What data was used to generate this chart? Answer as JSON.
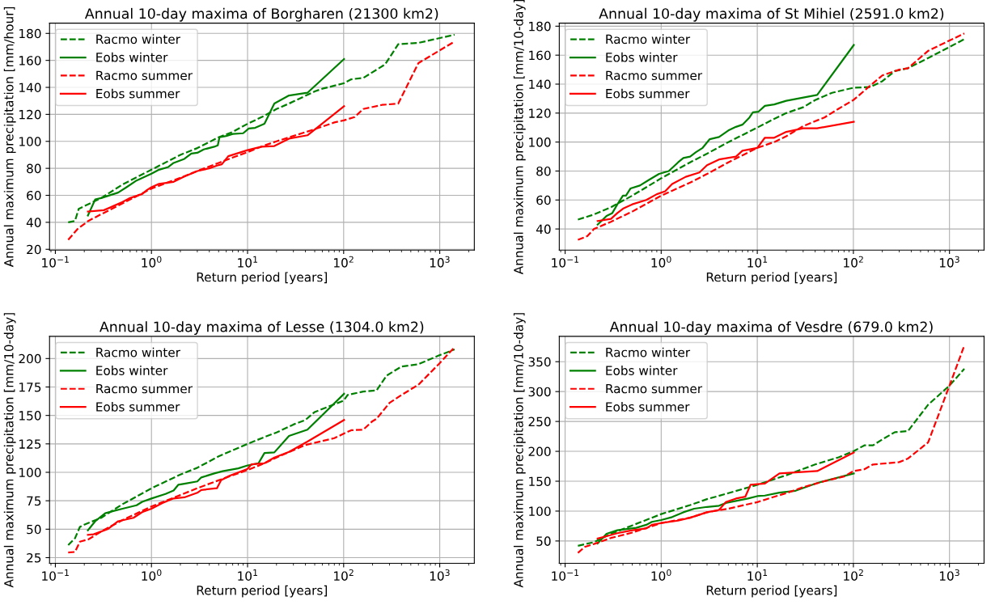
{
  "chart_data": [
    {
      "type": "line",
      "title": "Annual 10-day maxima of Borgharen (21300 km2)",
      "xlabel": "Return period [years]",
      "ylabel": "Annual maximum precipitation [mm/hour]",
      "log": "x",
      "grid": true,
      "legend": "top left",
      "xlim": [
        0.087,
        2290
      ],
      "ylim": [
        19.4,
        187.6
      ],
      "xticks": [
        {
          "value": 0.1,
          "label": "10$^{−1}$"
        },
        {
          "value": 1,
          "label": "10$^{0}$"
        },
        {
          "value": 10,
          "label": "10$^{1}$"
        },
        {
          "value": 100,
          "label": "10$^{2}$"
        },
        {
          "value": 1000,
          "label": "10$^{3}$"
        }
      ],
      "yticks": [
        20,
        40,
        60,
        80,
        100,
        120,
        140,
        160,
        180
      ],
      "series": [
        {
          "name": "Racmo winter",
          "color": "#008000",
          "line_style": "dashed",
          "x": [
            0.136,
            0.16,
            0.175,
            0.2,
            0.3,
            0.5,
            1,
            2,
            3,
            5,
            7,
            10,
            15,
            20,
            27,
            50,
            60,
            100,
            120,
            160,
            270,
            370,
            600,
            1427
          ],
          "values": [
            40,
            41,
            50,
            52,
            58,
            68,
            79,
            90,
            95,
            103,
            107,
            113,
            119,
            124,
            128,
            137,
            139,
            143,
            146,
            147,
            157,
            172,
            173,
            179
          ]
        },
        {
          "name": "Eobs winter",
          "color": "#008000",
          "line_style": "solid",
          "x": [
            0.218,
            0.26,
            0.3,
            0.45,
            0.55,
            0.7,
            1,
            1.2,
            1.5,
            1.7,
            2.2,
            2.6,
            3,
            3.5,
            4.5,
            4.9,
            5.1,
            6,
            7,
            9,
            10.3,
            12,
            15,
            19,
            27,
            42,
            101
          ],
          "values": [
            45,
            57,
            58,
            62,
            66,
            71,
            76,
            79,
            81,
            84,
            87,
            91,
            91.5,
            94,
            96,
            97,
            103,
            104,
            105.5,
            106,
            109.5,
            110,
            113,
            128,
            134,
            136,
            161
          ]
        },
        {
          "name": "Racmo summer",
          "color": "#ff0000",
          "line_style": "dashed",
          "x": [
            0.136,
            0.17,
            0.22,
            0.3,
            0.5,
            1,
            2,
            3,
            5,
            7,
            10,
            15,
            20,
            30,
            50,
            80,
            100,
            130,
            160,
            250,
            370,
            600,
            1427
          ],
          "values": [
            27,
            35,
            41,
            46,
            54,
            65,
            73,
            78,
            84,
            88,
            92,
            97,
            100,
            104,
            109,
            114,
            115.5,
            118,
            124,
            127,
            128,
            158,
            174
          ]
        },
        {
          "name": "Eobs summer",
          "color": "#ff0000",
          "line_style": "solid",
          "x": [
            0.218,
            0.32,
            0.4,
            0.5,
            0.6,
            0.8,
            0.9,
            1,
            1.2,
            1.7,
            2.2,
            3,
            4,
            4.8,
            5.4,
            6.3,
            10,
            14,
            19,
            27,
            42,
            101
          ],
          "values": [
            48,
            49,
            52,
            55,
            58,
            61,
            64,
            66,
            68.5,
            70,
            74,
            78,
            80,
            82,
            83,
            89,
            93.5,
            96,
            96.5,
            102,
            104.5,
            126
          ]
        }
      ]
    },
    {
      "type": "line",
      "title": "Annual 10-day maxima of St Mihiel (2591.0 km2)",
      "xlabel": "Return period [years]",
      "ylabel": "Annual maximum precipitation [mm/10-day]",
      "log": "x",
      "grid": true,
      "legend": "top left",
      "xlim": [
        0.087,
        2290
      ],
      "ylim": [
        25.4,
        182.1
      ],
      "xticks": [
        {
          "value": 0.1,
          "label": "10$^{−1}$"
        },
        {
          "value": 1,
          "label": "10$^{0}$"
        },
        {
          "value": 10,
          "label": "10$^{1}$"
        },
        {
          "value": 100,
          "label": "10$^{2}$"
        },
        {
          "value": 1000,
          "label": "10$^{3}$"
        }
      ],
      "yticks": [
        40,
        60,
        80,
        100,
        120,
        140,
        160,
        180
      ],
      "series": [
        {
          "name": "Racmo winter",
          "color": "#008000",
          "line_style": "dashed",
          "x": [
            0.136,
            0.2,
            0.3,
            0.5,
            1,
            2,
            3,
            5,
            10,
            15,
            20,
            30,
            40,
            60,
            100,
            150,
            200,
            270,
            370,
            600,
            1427
          ],
          "values": [
            46.5,
            50,
            55,
            63,
            75,
            86,
            92,
            100,
            110,
            116,
            120,
            124,
            129,
            134,
            137.5,
            138,
            142,
            149,
            151,
            158,
            171
          ]
        },
        {
          "name": "Eobs winter",
          "color": "#008000",
          "line_style": "solid",
          "x": [
            0.218,
            0.27,
            0.31,
            0.35,
            0.4,
            0.43,
            0.48,
            0.6,
            0.75,
            0.95,
            1.2,
            1.5,
            1.7,
            2,
            2.3,
            2.7,
            3.2,
            4,
            5,
            6,
            7,
            8.3,
            9,
            10.3,
            12,
            15,
            20,
            42,
            101
          ],
          "values": [
            43,
            49,
            51,
            57,
            63,
            63,
            68,
            70,
            74,
            78,
            80,
            86,
            89,
            90,
            93,
            96,
            102,
            103.5,
            108,
            110.5,
            112,
            117,
            120.5,
            121,
            125,
            126,
            128.5,
            132.5,
            167
          ]
        },
        {
          "name": "Racmo summer",
          "color": "#ff0000",
          "line_style": "dashed",
          "x": [
            0.136,
            0.17,
            0.2,
            0.3,
            0.5,
            1,
            2,
            3,
            5,
            10,
            15,
            20,
            30,
            50,
            70,
            100,
            150,
            200,
            300,
            370,
            600,
            1427
          ],
          "values": [
            32.5,
            35,
            40,
            45,
            52,
            63,
            72,
            78,
            86,
            96,
            100,
            104,
            111,
            117,
            123,
            129,
            139,
            146,
            150,
            151,
            163,
            175
          ]
        },
        {
          "name": "Eobs summer",
          "color": "#ff0000",
          "line_style": "solid",
          "x": [
            0.218,
            0.3,
            0.35,
            0.4,
            0.5,
            0.7,
            0.9,
            1.1,
            1.3,
            1.8,
            2.5,
            3,
            4,
            6,
            7,
            10,
            12,
            15,
            20,
            30,
            42,
            101
          ],
          "values": [
            45.5,
            47,
            51,
            54,
            57,
            60,
            64,
            66,
            71,
            76,
            79,
            84,
            88,
            90,
            94,
            96,
            103,
            103,
            107,
            109.5,
            109.5,
            114
          ]
        }
      ]
    },
    {
      "type": "line",
      "title": "Annual 10-day maxima of Lesse (1304.0 km2)",
      "xlabel": "Return period [years]",
      "ylabel": "Annual maximum precipitation [mm/10-day]",
      "log": "x",
      "grid": true,
      "legend": "top left",
      "xlim": [
        0.087,
        2290
      ],
      "ylim": [
        20,
        219.5
      ],
      "xticks": [
        {
          "value": 0.1,
          "label": "10$^{−1}$"
        },
        {
          "value": 1,
          "label": "10$^{0}$"
        },
        {
          "value": 10,
          "label": "10$^{1}$"
        },
        {
          "value": 100,
          "label": "10$^{2}$"
        },
        {
          "value": 1000,
          "label": "10$^{3}$"
        }
      ],
      "yticks": [
        25,
        50,
        75,
        100,
        125,
        150,
        175,
        200
      ],
      "series": [
        {
          "name": "Racmo winter",
          "color": "#008000",
          "line_style": "dashed",
          "x": [
            0.136,
            0.16,
            0.18,
            0.2,
            0.3,
            0.5,
            1,
            2,
            3,
            5,
            10,
            15,
            20,
            30,
            40,
            50,
            100,
            110,
            160,
            220,
            280,
            400,
            600,
            1000,
            1427
          ],
          "values": [
            36,
            42,
            52,
            54,
            60,
            72,
            86,
            98,
            104,
            114,
            125,
            131,
            135,
            142,
            146,
            153,
            163,
            168,
            171,
            172,
            185,
            193,
            195,
            203,
            208
          ]
        },
        {
          "name": "Eobs winter",
          "color": "#008000",
          "line_style": "solid",
          "x": [
            0.218,
            0.26,
            0.33,
            0.4,
            0.5,
            0.7,
            0.8,
            1,
            1.4,
            1.7,
            1.9,
            2.2,
            3,
            3.3,
            4.5,
            5.5,
            8,
            10,
            13,
            15,
            19,
            27,
            42,
            101
          ],
          "values": [
            49,
            57,
            64,
            66,
            68,
            71,
            74,
            77,
            81,
            84,
            89,
            90,
            92,
            95.5,
            99,
            101,
            103.5,
            106,
            108,
            117,
            117.5,
            132,
            137.5,
            169
          ]
        },
        {
          "name": "Racmo summer",
          "color": "#ff0000",
          "line_style": "dashed",
          "x": [
            0.136,
            0.16,
            0.18,
            0.22,
            0.3,
            0.5,
            1,
            2,
            3,
            5,
            10,
            15,
            20,
            40,
            80,
            100,
            120,
            160,
            200,
            220,
            300,
            400,
            600,
            1000,
            1427
          ],
          "values": [
            29.5,
            30,
            39,
            41,
            48,
            58,
            70,
            80,
            86,
            93,
            102,
            108,
            113,
            124,
            130,
            134,
            137,
            137.5,
            145,
            147,
            161,
            168,
            177,
            196,
            210
          ]
        },
        {
          "name": "Eobs summer",
          "color": "#ff0000",
          "line_style": "solid",
          "x": [
            0.218,
            0.25,
            0.35,
            0.45,
            0.65,
            0.8,
            1,
            1.3,
            1.7,
            2.2,
            3,
            3.3,
            4.8,
            5.3,
            6.5,
            10,
            11,
            15,
            19,
            27,
            42,
            101
          ],
          "values": [
            45,
            45.5,
            50,
            57,
            60,
            65,
            68,
            73,
            77,
            78,
            82,
            84.5,
            86,
            93,
            97,
            103,
            107,
            108,
            113,
            118,
            127,
            146
          ]
        }
      ]
    },
    {
      "type": "line",
      "title": "Annual 10-day maxima of Vesdre (679.0 km2)",
      "xlabel": "Return period [years]",
      "ylabel": "Annual maximum precipitation [mm/10-day]",
      "log": "x",
      "grid": true,
      "legend": "top left",
      "xlim": [
        0.087,
        2290
      ],
      "ylim": [
        12.6,
        392.4
      ],
      "xticks": [
        {
          "value": 0.1,
          "label": "10$^{−1}$"
        },
        {
          "value": 1,
          "label": "10$^{0}$"
        },
        {
          "value": 10,
          "label": "10$^{1}$"
        },
        {
          "value": 100,
          "label": "10$^{2}$"
        },
        {
          "value": 1000,
          "label": "10$^{3}$"
        }
      ],
      "yticks": [
        50,
        100,
        150,
        200,
        250,
        300,
        350
      ],
      "series": [
        {
          "name": "Racmo winter",
          "color": "#008000",
          "line_style": "dashed",
          "x": [
            0.136,
            0.2,
            0.3,
            0.5,
            1,
            2,
            3,
            5,
            10,
            20,
            40,
            70,
            100,
            130,
            160,
            200,
            270,
            370,
            600,
            1000,
            1427
          ],
          "values": [
            42,
            48,
            62,
            76,
            95,
            110,
            120,
            130,
            144,
            160,
            178,
            190,
            200,
            210,
            210,
            220,
            232,
            234,
            278,
            310,
            338
          ]
        },
        {
          "name": "Eobs winter",
          "color": "#008000",
          "line_style": "solid",
          "x": [
            0.218,
            0.27,
            0.35,
            0.55,
            0.7,
            0.8,
            1,
            1.3,
            1.7,
            2.2,
            3,
            4,
            4.8,
            6,
            8,
            10,
            12,
            17,
            25,
            42,
            101
          ],
          "values": [
            46,
            62,
            68,
            72,
            77,
            82,
            85,
            90,
            98,
            104,
            107,
            109,
            114,
            117,
            121,
            125,
            126,
            131,
            134,
            147,
            163
          ]
        },
        {
          "name": "Racmo summer",
          "color": "#ff0000",
          "line_style": "dashed",
          "x": [
            0.136,
            0.16,
            0.2,
            0.3,
            0.5,
            1,
            2,
            3,
            5,
            10,
            15,
            20,
            30,
            50,
            80,
            100,
            130,
            160,
            300,
            370,
            600,
            1000,
            1427
          ],
          "values": [
            30,
            40,
            45,
            55,
            64,
            80,
            89,
            98,
            104,
            115,
            124,
            130,
            140,
            150,
            158,
            167,
            170,
            178,
            182,
            188,
            215,
            310,
            377
          ]
        },
        {
          "name": "Eobs summer",
          "color": "#ff0000",
          "line_style": "solid",
          "x": [
            0.218,
            0.27,
            0.35,
            0.5,
            0.7,
            0.8,
            1,
            1.5,
            2,
            3,
            4,
            4.7,
            6,
            7.5,
            8.5,
            12,
            17,
            42,
            101
          ],
          "values": [
            54,
            58,
            63,
            68,
            71,
            77,
            80,
            84,
            89,
            98,
            102,
            115,
            121,
            124,
            144,
            146,
            163,
            167,
            198
          ]
        }
      ]
    }
  ]
}
